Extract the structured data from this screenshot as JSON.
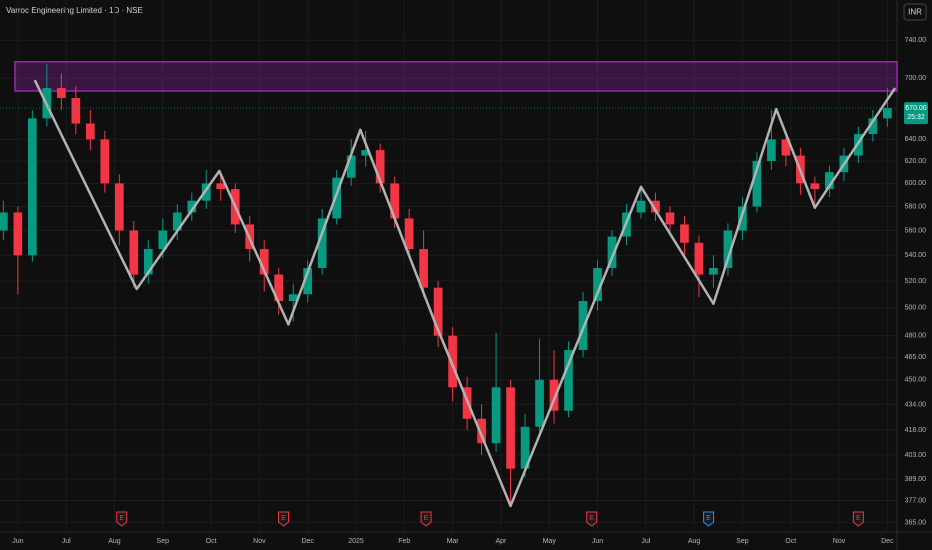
{
  "chart_data": {
    "type": "candlestick",
    "title": "Varroc Engineering Limited · 1D · NSE",
    "currency": "INR",
    "log_scale": true,
    "grid": true,
    "up_color": "#089981",
    "down_color": "#f23645",
    "x": [
      -0.3,
      0,
      0.3,
      0.6,
      0.9,
      1.2,
      1.5,
      1.8,
      2.1,
      2.4,
      2.7,
      3,
      3.3,
      3.6,
      3.9,
      4.2,
      4.5,
      4.8,
      5.1,
      5.4,
      5.7,
      6,
      6.3,
      6.6,
      6.9,
      7.2,
      7.5,
      7.8,
      8.1,
      8.4,
      8.7,
      9,
      9.3,
      9.6,
      9.9,
      10.2,
      10.5,
      10.8,
      11.1,
      11.4,
      11.7,
      12,
      12.3,
      12.6,
      12.9,
      13.2,
      13.5,
      13.8,
      14.1,
      14.4,
      14.7,
      15,
      15.3,
      15.6,
      15.9,
      16.2,
      16.5,
      16.8,
      17.1,
      17.4,
      17.7,
      18
    ],
    "open": [
      560,
      575,
      540,
      660,
      690,
      680,
      655,
      640,
      600,
      560,
      525,
      545,
      560,
      575,
      585,
      600,
      595,
      565,
      545,
      525,
      505,
      510,
      530,
      570,
      605,
      625,
      630,
      600,
      570,
      545,
      515,
      480,
      445,
      425,
      410,
      445,
      395,
      420,
      450,
      430,
      470,
      505,
      530,
      555,
      575,
      585,
      575,
      565,
      550,
      525,
      530,
      560,
      580,
      620,
      640,
      625,
      600,
      595,
      610,
      625,
      645,
      660
    ],
    "high": [
      585,
      580,
      668,
      715,
      705,
      692,
      668,
      648,
      608,
      568,
      552,
      570,
      582,
      592,
      612,
      608,
      600,
      572,
      552,
      530,
      518,
      536,
      578,
      612,
      640,
      648,
      636,
      606,
      578,
      560,
      520,
      486,
      452,
      434,
      482,
      450,
      428,
      478,
      470,
      476,
      512,
      536,
      560,
      582,
      598,
      592,
      580,
      572,
      556,
      540,
      566,
      588,
      628,
      668,
      648,
      632,
      606,
      616,
      632,
      652,
      668,
      690
    ],
    "low": [
      552,
      510,
      535,
      652,
      668,
      645,
      630,
      592,
      548,
      515,
      518,
      538,
      552,
      568,
      578,
      585,
      558,
      535,
      512,
      495,
      490,
      504,
      525,
      565,
      598,
      615,
      592,
      562,
      538,
      508,
      472,
      436,
      418,
      403,
      405,
      375,
      390,
      415,
      422,
      426,
      465,
      498,
      524,
      548,
      570,
      568,
      558,
      540,
      508,
      515,
      524,
      552,
      575,
      612,
      615,
      590,
      582,
      588,
      602,
      618,
      638,
      652
    ],
    "close": [
      575,
      540,
      660,
      690,
      680,
      655,
      640,
      600,
      560,
      525,
      545,
      560,
      575,
      585,
      600,
      595,
      565,
      545,
      525,
      505,
      510,
      530,
      570,
      605,
      625,
      630,
      600,
      570,
      545,
      515,
      480,
      445,
      425,
      410,
      445,
      395,
      420,
      450,
      430,
      470,
      505,
      530,
      555,
      575,
      585,
      575,
      565,
      550,
      525,
      530,
      560,
      580,
      620,
      640,
      625,
      600,
      595,
      610,
      625,
      645,
      660,
      670
    ],
    "zigzag": {
      "color": "#b2b2b2",
      "x": [
        0.35,
        2.46,
        4.17,
        5.6,
        7.09,
        8.64,
        10.2,
        12.9,
        14.4,
        15.7,
        16.5,
        18.16
      ],
      "values": [
        698,
        514,
        611,
        488,
        649,
        489,
        374,
        597,
        503,
        669,
        579,
        690
      ]
    },
    "zone": {
      "color": "#9c27b0",
      "low": 687,
      "high": 717,
      "x": [
        -0.06,
        18.2
      ]
    },
    "price_label": {
      "value": 670,
      "label": "670.00",
      "countdown": "25:32",
      "color": "#089981"
    },
    "events": [
      {
        "x": 2.15,
        "label": "E",
        "color": "#f23645"
      },
      {
        "x": 5.5,
        "label": "E",
        "color": "#f23645"
      },
      {
        "x": 8.45,
        "label": "E",
        "color": "#f23645"
      },
      {
        "x": 11.88,
        "label": "E",
        "color": "#f23645"
      },
      {
        "x": 14.3,
        "label": "E",
        "color": "#2196f3"
      },
      {
        "x": 17.4,
        "label": "E",
        "color": "#f23645"
      }
    ],
    "xlim": [
      -0.37,
      18.2
    ],
    "xticks": [
      {
        "value": 0,
        "label": "Jun"
      },
      {
        "value": 1,
        "label": "Jul"
      },
      {
        "value": 2,
        "label": "Aug"
      },
      {
        "value": 3,
        "label": "Sep"
      },
      {
        "value": 4,
        "label": "Oct"
      },
      {
        "value": 5,
        "label": "Nov"
      },
      {
        "value": 6,
        "label": "Dec"
      },
      {
        "value": 7,
        "label": "2025"
      },
      {
        "value": 8,
        "label": "Feb"
      },
      {
        "value": 9,
        "label": "Mar"
      },
      {
        "value": 10,
        "label": "Apr"
      },
      {
        "value": 11,
        "label": "May"
      },
      {
        "value": 12,
        "label": "Jun"
      },
      {
        "value": 13,
        "label": "Jul"
      },
      {
        "value": 14,
        "label": "Aug"
      },
      {
        "value": 15,
        "label": "Sep"
      },
      {
        "value": 16,
        "label": "Oct"
      },
      {
        "value": 17,
        "label": "Nov"
      },
      {
        "value": 18,
        "label": "Dec"
      }
    ],
    "ylim": [
      360,
      785
    ],
    "yticks": [
      {
        "value": 740,
        "label": "740.00"
      },
      {
        "value": 700,
        "label": "700.00"
      },
      {
        "value": 640,
        "label": "640.00"
      },
      {
        "value": 620,
        "label": "620.00"
      },
      {
        "value": 600,
        "label": "600.00"
      },
      {
        "value": 580,
        "label": "580.00"
      },
      {
        "value": 560,
        "label": "560.00"
      },
      {
        "value": 540,
        "label": "540.00"
      },
      {
        "value": 520,
        "label": "520.00"
      },
      {
        "value": 500,
        "label": "500.00"
      },
      {
        "value": 480,
        "label": "480.00"
      },
      {
        "value": 465,
        "label": "465.00"
      },
      {
        "value": 450,
        "label": "450.00"
      },
      {
        "value": 434,
        "label": "434.00"
      },
      {
        "value": 418,
        "label": "418.00"
      },
      {
        "value": 403,
        "label": "403.00"
      },
      {
        "value": 389,
        "label": "389.00"
      },
      {
        "value": 377,
        "label": "377.00"
      },
      {
        "value": 365,
        "label": "365.00"
      }
    ]
  }
}
